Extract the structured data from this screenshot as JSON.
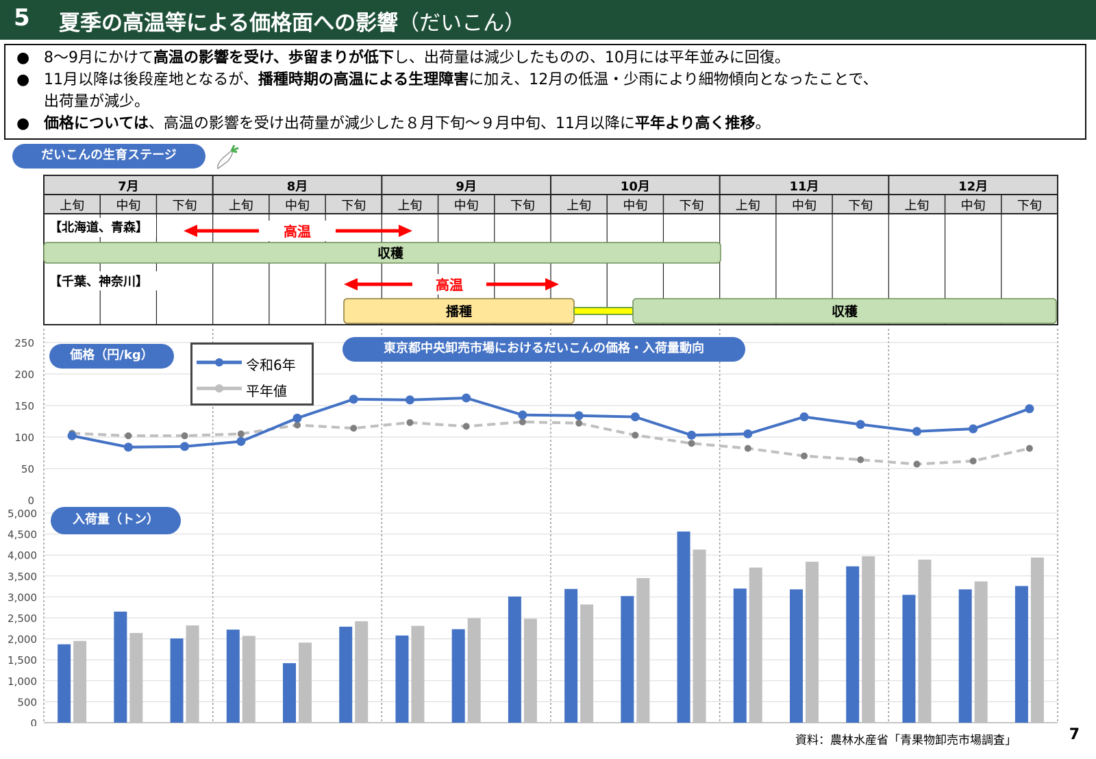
{
  "header": {
    "number": "5",
    "title": "夏季の高温等による価格面への影響",
    "subtitle": "（だいこん）"
  },
  "summary": [
    {
      "parts": [
        [
          "8～9月にかけて",
          0
        ],
        [
          "高温の影響を受け、歩留まりが低下",
          1
        ],
        [
          "し、出荷量は減少したものの、10月には平年並みに回復。",
          0
        ]
      ]
    },
    {
      "parts": [
        [
          "11月以降は後段産地となるが、",
          0
        ],
        [
          "播種時期の高温による生理障害",
          1
        ],
        [
          "に加え、12月の低温・少雨により細物傾向となったことで、",
          0
        ]
      ]
    },
    {
      "parts": [
        [
          "出荷量が減少。",
          0
        ]
      ]
    },
    {
      "parts": [
        [
          "価格については",
          1
        ],
        [
          "、高温の影響を受け出荷量が減少した８月下旬～９月中旬、11月以降に",
          0
        ],
        [
          "平年より高く推移",
          1
        ],
        [
          "。",
          0
        ]
      ]
    }
  ],
  "bullet_char": "●",
  "stage": {
    "pill": "だいこんの生育ステージ",
    "months": [
      "7月",
      "8月",
      "9月",
      "10月",
      "11月",
      "12月"
    ],
    "periods": [
      "上旬",
      "中旬",
      "下旬"
    ],
    "region1": "【北海道、青森】",
    "region2": "【千葉、神奈川】",
    "heat_label": "高温",
    "harvest_label": "収穫",
    "sowing_label": "播種"
  },
  "market_title": "東京都中央卸売市場におけるだいこんの価格・入荷量動向",
  "price_pill": "価格（円/kg）",
  "volume_pill": "入荷量（トン）",
  "legend": {
    "r6": "令和6年",
    "avg": "平年値"
  },
  "colors": {
    "r6": "#4472c4",
    "avg": "#bfbfbf",
    "avg_marker": "#7f7f7f",
    "heat": "#ff0000",
    "harvest": "#c5e0b4",
    "sowing": "#ffe699"
  },
  "chart_data": [
    {
      "type": "line",
      "categories": [
        "7月上旬",
        "7月中旬",
        "7月下旬",
        "8月上旬",
        "8月中旬",
        "8月下旬",
        "9月上旬",
        "9月中旬",
        "9月下旬",
        "10月上旬",
        "10月中旬",
        "10月下旬",
        "11月上旬",
        "11月中旬",
        "11月下旬",
        "12月上旬",
        "12月中旬",
        "12月下旬"
      ],
      "ylim": [
        0,
        250
      ],
      "yticks": [
        "0",
        "50",
        "100",
        "150",
        "200",
        "250"
      ],
      "series": [
        {
          "name": "令和6年",
          "values": [
            102,
            84,
            85,
            93,
            130,
            160,
            159,
            162,
            135,
            134,
            132,
            103,
            105,
            132,
            120,
            109,
            113,
            145
          ]
        },
        {
          "name": "平年値",
          "values": [
            106,
            102,
            102,
            105,
            119,
            114,
            123,
            117,
            124,
            122,
            103,
            90,
            82,
            70,
            64,
            57,
            62,
            82
          ]
        }
      ]
    },
    {
      "type": "bar",
      "categories": [
        "7月上旬",
        "7月中旬",
        "7月下旬",
        "8月上旬",
        "8月中旬",
        "8月下旬",
        "9月上旬",
        "9月中旬",
        "9月下旬",
        "10月上旬",
        "10月中旬",
        "10月下旬",
        "11月上旬",
        "11月中旬",
        "11月下旬",
        "12月上旬",
        "12月中旬",
        "12月下旬"
      ],
      "ylim": [
        0,
        5000
      ],
      "yticks": [
        "0",
        "500",
        "1,000",
        "1,500",
        "2,000",
        "2,500",
        "3,000",
        "3,500",
        "4,000",
        "4,500",
        "5,000"
      ],
      "series": [
        {
          "name": "令和6年",
          "values": [
            1870,
            2650,
            2010,
            2220,
            1420,
            2290,
            2080,
            2230,
            3010,
            3190,
            3020,
            4560,
            3200,
            3180,
            3730,
            3050,
            3180,
            3260
          ]
        },
        {
          "name": "平年値",
          "values": [
            1950,
            2140,
            2320,
            2070,
            1910,
            2420,
            2310,
            2490,
            2480,
            2820,
            3450,
            4130,
            3700,
            3840,
            3970,
            3890,
            3370,
            3940
          ]
        }
      ]
    }
  ],
  "source": "資料：農林水産省「青果物卸売市場調査」",
  "page_number": "7"
}
